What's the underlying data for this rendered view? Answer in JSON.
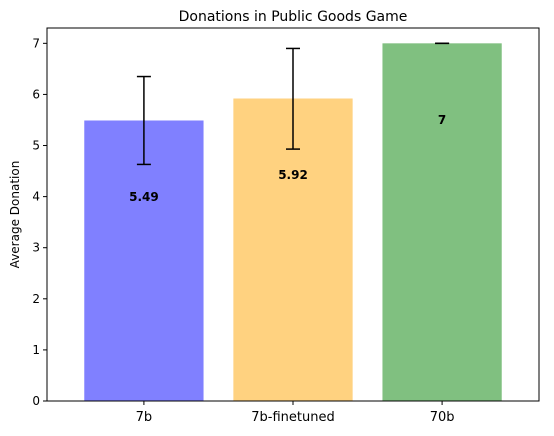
{
  "chart_data": {
    "type": "bar",
    "title": "Donations in Public Goods Game",
    "xlabel": "",
    "ylabel": "Average Donation",
    "categories": [
      "7b",
      "7b-finetuned",
      "70b"
    ],
    "values": [
      5.49,
      5.92,
      7
    ],
    "value_labels": [
      "5.49",
      "5.92",
      "7"
    ],
    "error_low": [
      4.63,
      4.93,
      7.0
    ],
    "error_high": [
      6.35,
      6.9,
      7.0
    ],
    "colors": [
      "#8080ff",
      "#ffd280",
      "#80c080"
    ],
    "ylim": [
      0,
      7.3
    ],
    "yticks": [
      0,
      1,
      2,
      3,
      4,
      5,
      6,
      7
    ],
    "ytick_labels": [
      "0",
      "1",
      "2",
      "3",
      "4",
      "5",
      "6",
      "7"
    ],
    "grid": false,
    "legend": "none"
  }
}
